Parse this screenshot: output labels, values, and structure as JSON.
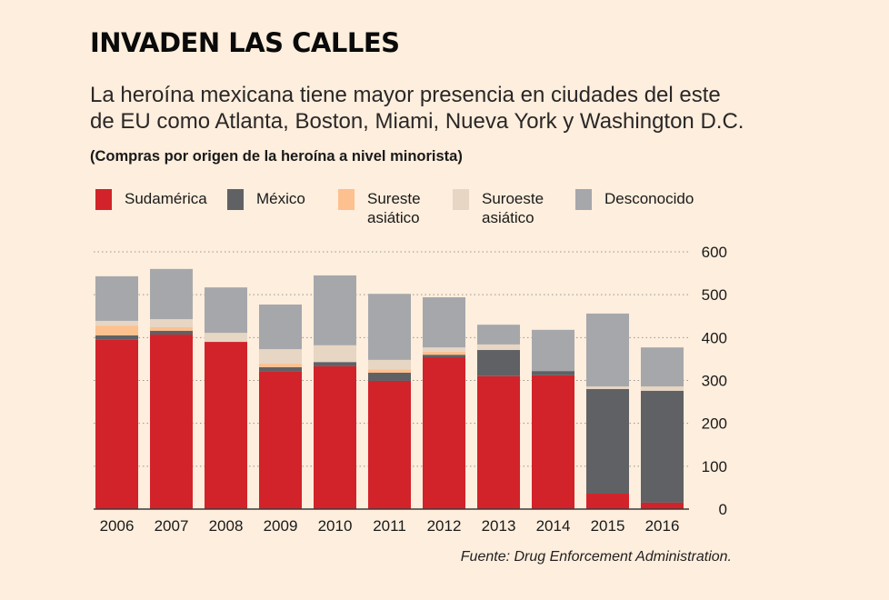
{
  "header": {
    "title": "INVADEN LAS CALLES",
    "subtitle": "La heroína mexicana tiene mayor presencia en ciudades del este de EU como Atlanta, Boston, Miami, Nueva York y Washington D.C.",
    "note": "(Compras por origen de la heroína a nivel minorista)"
  },
  "legend": [
    {
      "label": "Sudamérica",
      "color": "#d2232a"
    },
    {
      "label": "México",
      "color": "#606164"
    },
    {
      "label": "Sureste\nasiático",
      "color": "#fdc08f"
    },
    {
      "label": "Suroeste\nasiático",
      "color": "#e6d6c3"
    },
    {
      "label": "Desconocido",
      "color": "#a6a7ab"
    }
  ],
  "source": "Fuente: Drug Enforcement Administration.",
  "chart_data": {
    "type": "bar",
    "stacked": true,
    "title": "INVADEN LAS CALLES",
    "xlabel": "",
    "ylabel": "",
    "ylim": [
      0,
      600
    ],
    "yticks": [
      0,
      100,
      200,
      300,
      400,
      500,
      600
    ],
    "y_axis_side": "right",
    "grid": "dotted horizontal",
    "legend_position": "top",
    "categories": [
      "2006",
      "2007",
      "2008",
      "2009",
      "2010",
      "2011",
      "2012",
      "2013",
      "2014",
      "2015",
      "2016"
    ],
    "series": [
      {
        "name": "Sudamérica",
        "color": "#d2232a",
        "values": [
          396,
          407,
          390,
          322,
          333,
          299,
          354,
          310,
          312,
          36,
          15
        ]
      },
      {
        "name": "México",
        "color": "#606164",
        "values": [
          9,
          9,
          0,
          9,
          10,
          19,
          6,
          61,
          10,
          244,
          261
        ]
      },
      {
        "name": "Sureste asiático",
        "color": "#fdc08f",
        "values": [
          23,
          8,
          0,
          8,
          0,
          8,
          7,
          0,
          0,
          0,
          0
        ]
      },
      {
        "name": "Suroeste asiático",
        "color": "#e6d6c3",
        "values": [
          11,
          19,
          21,
          34,
          39,
          22,
          10,
          13,
          0,
          6,
          10
        ]
      },
      {
        "name": "Desconocido",
        "color": "#a6a7ab",
        "values": [
          104,
          117,
          106,
          104,
          163,
          154,
          117,
          46,
          96,
          170,
          91
        ]
      }
    ]
  }
}
